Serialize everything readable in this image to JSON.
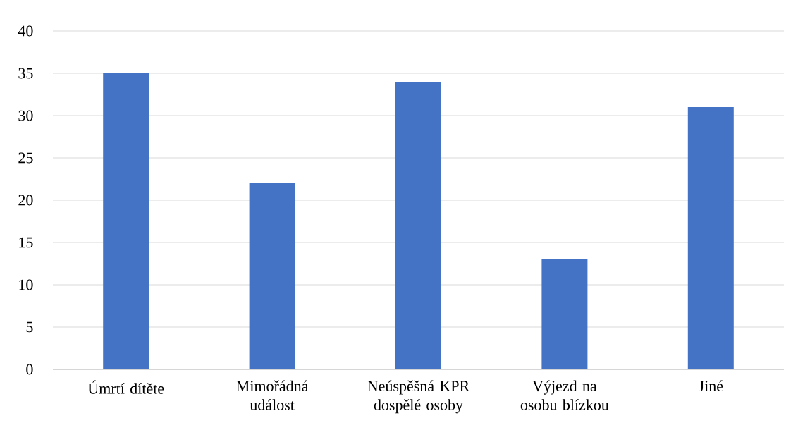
{
  "chart_data": {
    "type": "bar",
    "categories": [
      "Úmrtí dítěte",
      "Mimořádná událost",
      "Neúspěšná KPR dospělé osoby",
      "Výjezd na osobu blízkou",
      "Jiné"
    ],
    "values": [
      35,
      22,
      34,
      13,
      31
    ],
    "color": "#4472c4",
    "ylim": [
      0,
      40
    ],
    "yticks": [
      0,
      5,
      10,
      15,
      20,
      25,
      30,
      35,
      40
    ],
    "grid": "y"
  }
}
